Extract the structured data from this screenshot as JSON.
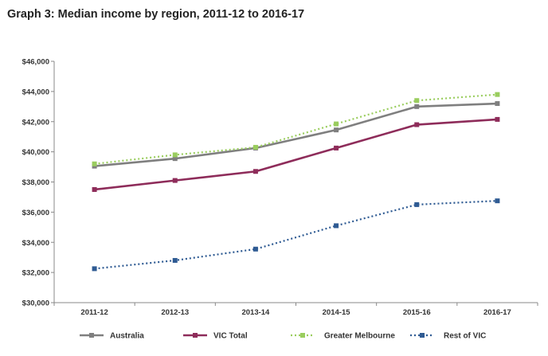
{
  "chart_data": {
    "type": "line",
    "title": "Graph 3: Median income by region, 2011-12 to 2016-17",
    "categories": [
      "2011-12",
      "2012-13",
      "2013-14",
      "2014-15",
      "2015-16",
      "2016-17"
    ],
    "yticks": [
      "$30,000",
      "$32,000",
      "$34,000",
      "$36,000",
      "$38,000",
      "$40,000",
      "$42,000",
      "$44,000",
      "$46,000"
    ],
    "ylim": [
      30000,
      46000
    ],
    "grid": false,
    "legend_position": "bottom",
    "series": [
      {
        "name": "Australia",
        "values": [
          39050,
          39550,
          40250,
          41450,
          43000,
          43200
        ],
        "color": "#7f7f7f",
        "style": "solid"
      },
      {
        "name": "VIC Total",
        "values": [
          37500,
          38100,
          38700,
          40250,
          41800,
          42150
        ],
        "color": "#8e2c5a",
        "style": "solid"
      },
      {
        "name": "Greater Melbourne",
        "values": [
          39200,
          39800,
          40300,
          41850,
          43400,
          43800
        ],
        "color": "#9acd5e",
        "style": "dotted"
      },
      {
        "name": "Rest of VIC",
        "values": [
          32250,
          32800,
          33550,
          35100,
          36500,
          36750
        ],
        "color": "#2f5b93",
        "style": "dotted"
      }
    ]
  }
}
